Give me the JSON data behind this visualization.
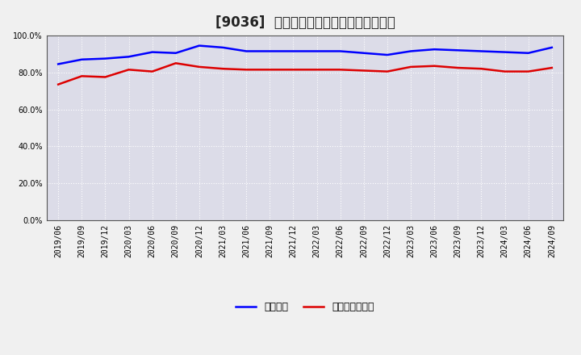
{
  "title": "[9036]  固定比率、固定長期適合率の推移",
  "background_color": "#f0f0f0",
  "plot_bg_color": "#dcdce8",
  "grid_color": "#ffffff",
  "ylim": [
    0,
    100
  ],
  "yticks": [
    0,
    20,
    40,
    60,
    80,
    100
  ],
  "ytick_labels": [
    "0.0%",
    "20.0%",
    "40.0%",
    "60.0%",
    "80.0%",
    "100.0%"
  ],
  "x_labels": [
    "2019/06",
    "2019/09",
    "2019/12",
    "2020/03",
    "2020/06",
    "2020/09",
    "2020/12",
    "2021/03",
    "2021/06",
    "2021/09",
    "2021/12",
    "2022/03",
    "2022/06",
    "2022/09",
    "2022/12",
    "2023/03",
    "2023/06",
    "2023/09",
    "2023/12",
    "2024/03",
    "2024/06",
    "2024/09"
  ],
  "fixed_ratio": [
    84.5,
    87.0,
    87.5,
    88.5,
    91.0,
    90.5,
    94.5,
    93.5,
    91.5,
    91.5,
    91.5,
    91.5,
    91.5,
    90.5,
    89.5,
    91.5,
    92.5,
    92.0,
    91.5,
    91.0,
    90.5,
    93.5
  ],
  "fixed_long_ratio": [
    73.5,
    78.0,
    77.5,
    81.5,
    80.5,
    85.0,
    83.0,
    82.0,
    81.5,
    81.5,
    81.5,
    81.5,
    81.5,
    81.0,
    80.5,
    83.0,
    83.5,
    82.5,
    82.0,
    80.5,
    80.5,
    82.5
  ],
  "line1_color": "#0000ff",
  "line2_color": "#dd0000",
  "line1_label": "固定比率",
  "line2_label": "固定長期適合率",
  "line_width": 1.8,
  "title_fontsize": 12,
  "tick_fontsize": 7,
  "legend_fontsize": 9
}
